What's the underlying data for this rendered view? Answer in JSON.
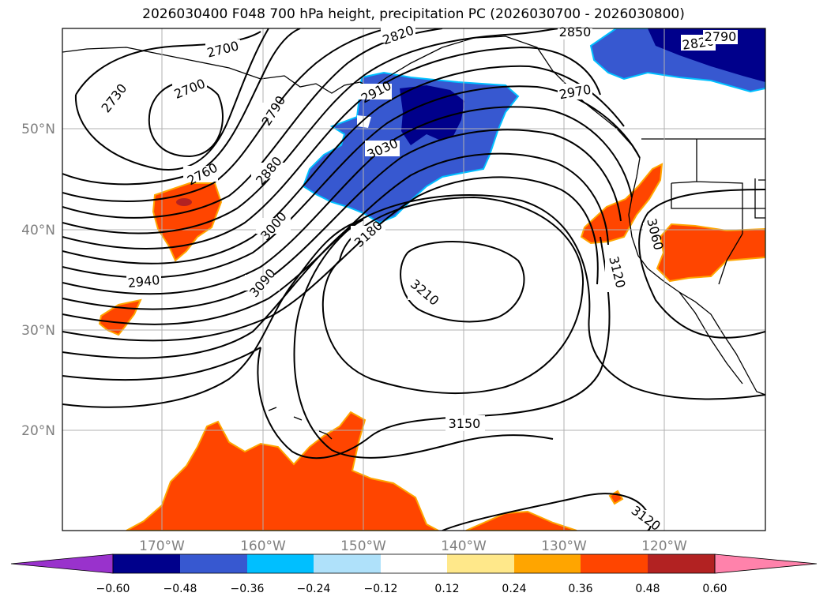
{
  "title": "2026030400 F048 700 hPa height, precipitation PC (2026030700 - 2026030800)",
  "map": {
    "lon_labels": [
      "170°W",
      "160°W",
      "150°W",
      "140°W",
      "130°W",
      "120°W"
    ],
    "lat_labels": [
      "50°N",
      "40°N",
      "30°N",
      "20°N"
    ],
    "contour_labels": [
      "2700",
      "2700",
      "2730",
      "2760",
      "2790",
      "2820",
      "2850",
      "2820",
      "2790",
      "2880",
      "2910",
      "2940",
      "2970",
      "3000",
      "3030",
      "3060",
      "3090",
      "3120",
      "3120",
      "3150",
      "3180",
      "3210"
    ]
  },
  "colorbar": {
    "ticks": [
      "−0.60",
      "−0.48",
      "−0.36",
      "−0.24",
      "−0.12",
      "0.12",
      "0.24",
      "0.36",
      "0.48",
      "0.60"
    ],
    "colors": [
      "#9932cc",
      "#00008b",
      "#3758d0",
      "#00bfff",
      "#afe1fa",
      "#ffffff",
      "#ffe88a",
      "#ffa500",
      "#ff4500",
      "#b22222",
      "#ff82ab"
    ]
  }
}
